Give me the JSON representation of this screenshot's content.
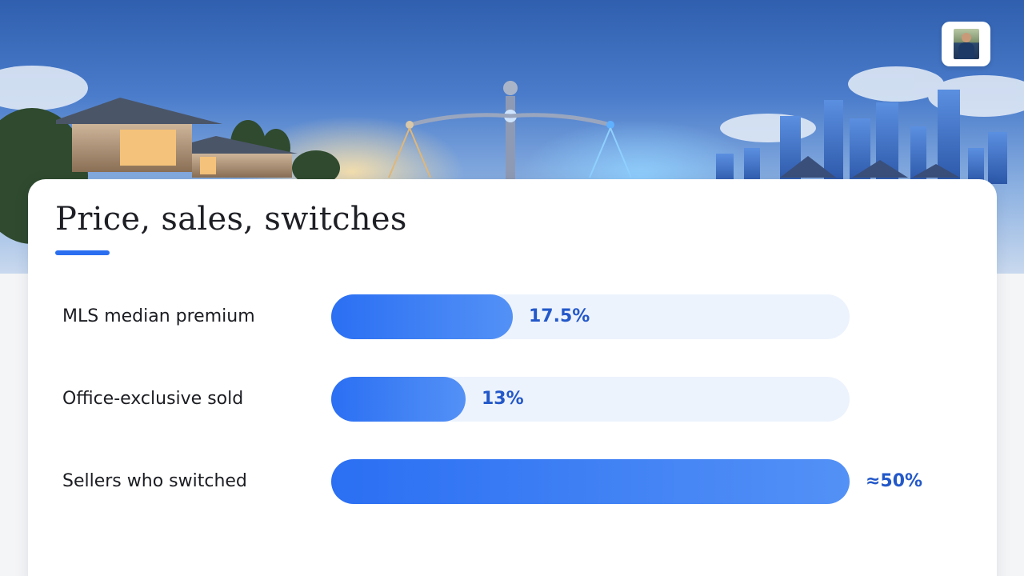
{
  "slide": {
    "title": "Price, sales, switches",
    "accent_color": "#2b6ff0",
    "avatar_icon": "profile-photo"
  },
  "chart_data": {
    "type": "bar",
    "orientation": "horizontal",
    "categories": [
      "MLS median premium",
      "Office-exclusive sold",
      "Sellers who switched"
    ],
    "values": [
      17.5,
      13,
      50
    ],
    "value_labels": [
      "17.5%",
      "13%",
      "≈50%"
    ],
    "unit": "%",
    "xlim": [
      0,
      50
    ],
    "grid": false,
    "bar_color": "#2b6ff3",
    "track_color": "#edf3fd",
    "label_color": "#2358c9"
  }
}
